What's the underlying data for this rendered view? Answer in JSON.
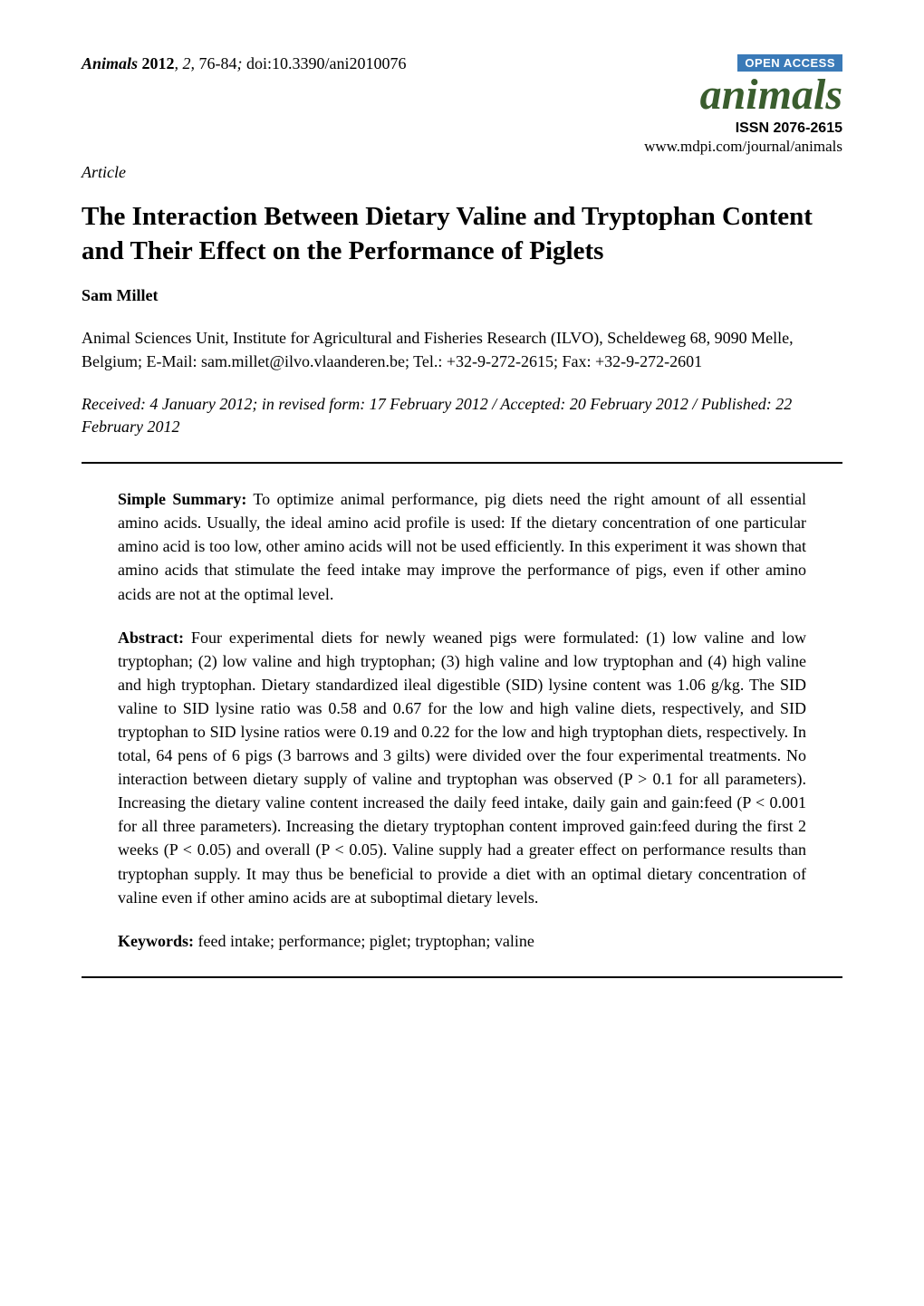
{
  "header": {
    "journal_name": "Animals",
    "year": "2012",
    "volume": "2",
    "pages": "76-84",
    "doi": "doi:10.3390/ani2010076",
    "open_access": "OPEN ACCESS",
    "brand_title": "animals",
    "issn": "ISSN 2076-2615",
    "website": "www.mdpi.com/journal/animals",
    "colors": {
      "open_access_bg": "#3a7ab8",
      "open_access_text": "#ffffff",
      "brand_title": "#3a5d2e",
      "text": "#000000",
      "background": "#ffffff",
      "rule": "#000000"
    },
    "fonts": {
      "body_family": "Times New Roman",
      "brand_family": "Times New Roman",
      "badge_family": "Arial",
      "body_size_pt": 13,
      "title_size_pt": 22,
      "brand_size_pt": 36
    }
  },
  "article": {
    "type": "Article",
    "title": "The Interaction Between Dietary Valine and Tryptophan Content and Their Effect on the Performance of Piglets",
    "authors": "Sam Millet",
    "affiliation": "Animal Sciences Unit, Institute for Agricultural and Fisheries Research (ILVO), Scheldeweg 68, 9090 Melle, Belgium; E-Mail: sam.millet@ilvo.vlaanderen.be; Tel.: +32-9-272-2615; Fax: +32-9-272-2601",
    "dates": "Received: 4 January 2012; in revised form: 17 February 2012 / Accepted: 20 February 2012 / Published: 22 February 2012"
  },
  "sections": {
    "simple_summary_label": "Simple Summary:",
    "simple_summary": " To optimize animal performance, pig diets need the right amount of all essential amino acids. Usually, the ideal amino acid profile is used: If the dietary concentration of one particular amino acid is too low, other amino acids will not be used efficiently. In this experiment it was shown that amino acids that stimulate the feed intake may improve the performance of pigs, even if other amino acids are not at the optimal level.",
    "abstract_label": "Abstract:",
    "abstract": " Four experimental diets for newly weaned pigs were formulated: (1) low valine and low tryptophan; (2) low valine and high tryptophan; (3) high valine and low tryptophan and (4) high valine and high tryptophan. Dietary standardized ileal digestible (SID) lysine content was 1.06 g/kg. The SID valine to SID lysine ratio was 0.58 and 0.67 for the low and high valine diets, respectively, and SID tryptophan to SID lysine ratios were 0.19 and 0.22 for the low and high tryptophan diets, respectively. In total, 64 pens of 6 pigs (3 barrows and 3 gilts) were divided over the four experimental treatments. No interaction between dietary supply of valine and tryptophan was observed (P > 0.1 for all parameters). Increasing the dietary valine content increased the daily feed intake, daily gain and gain:feed (P < 0.001 for all three parameters). Increasing the dietary tryptophan content improved gain:feed during the first 2 weeks (P < 0.05) and overall (P < 0.05). Valine supply had a greater effect on performance results than tryptophan supply. It may thus be beneficial to provide a diet with an optimal dietary concentration of valine even if other amino acids are at suboptimal dietary levels.",
    "keywords_label": "Keywords:",
    "keywords": " feed intake; performance; piglet; tryptophan; valine"
  }
}
